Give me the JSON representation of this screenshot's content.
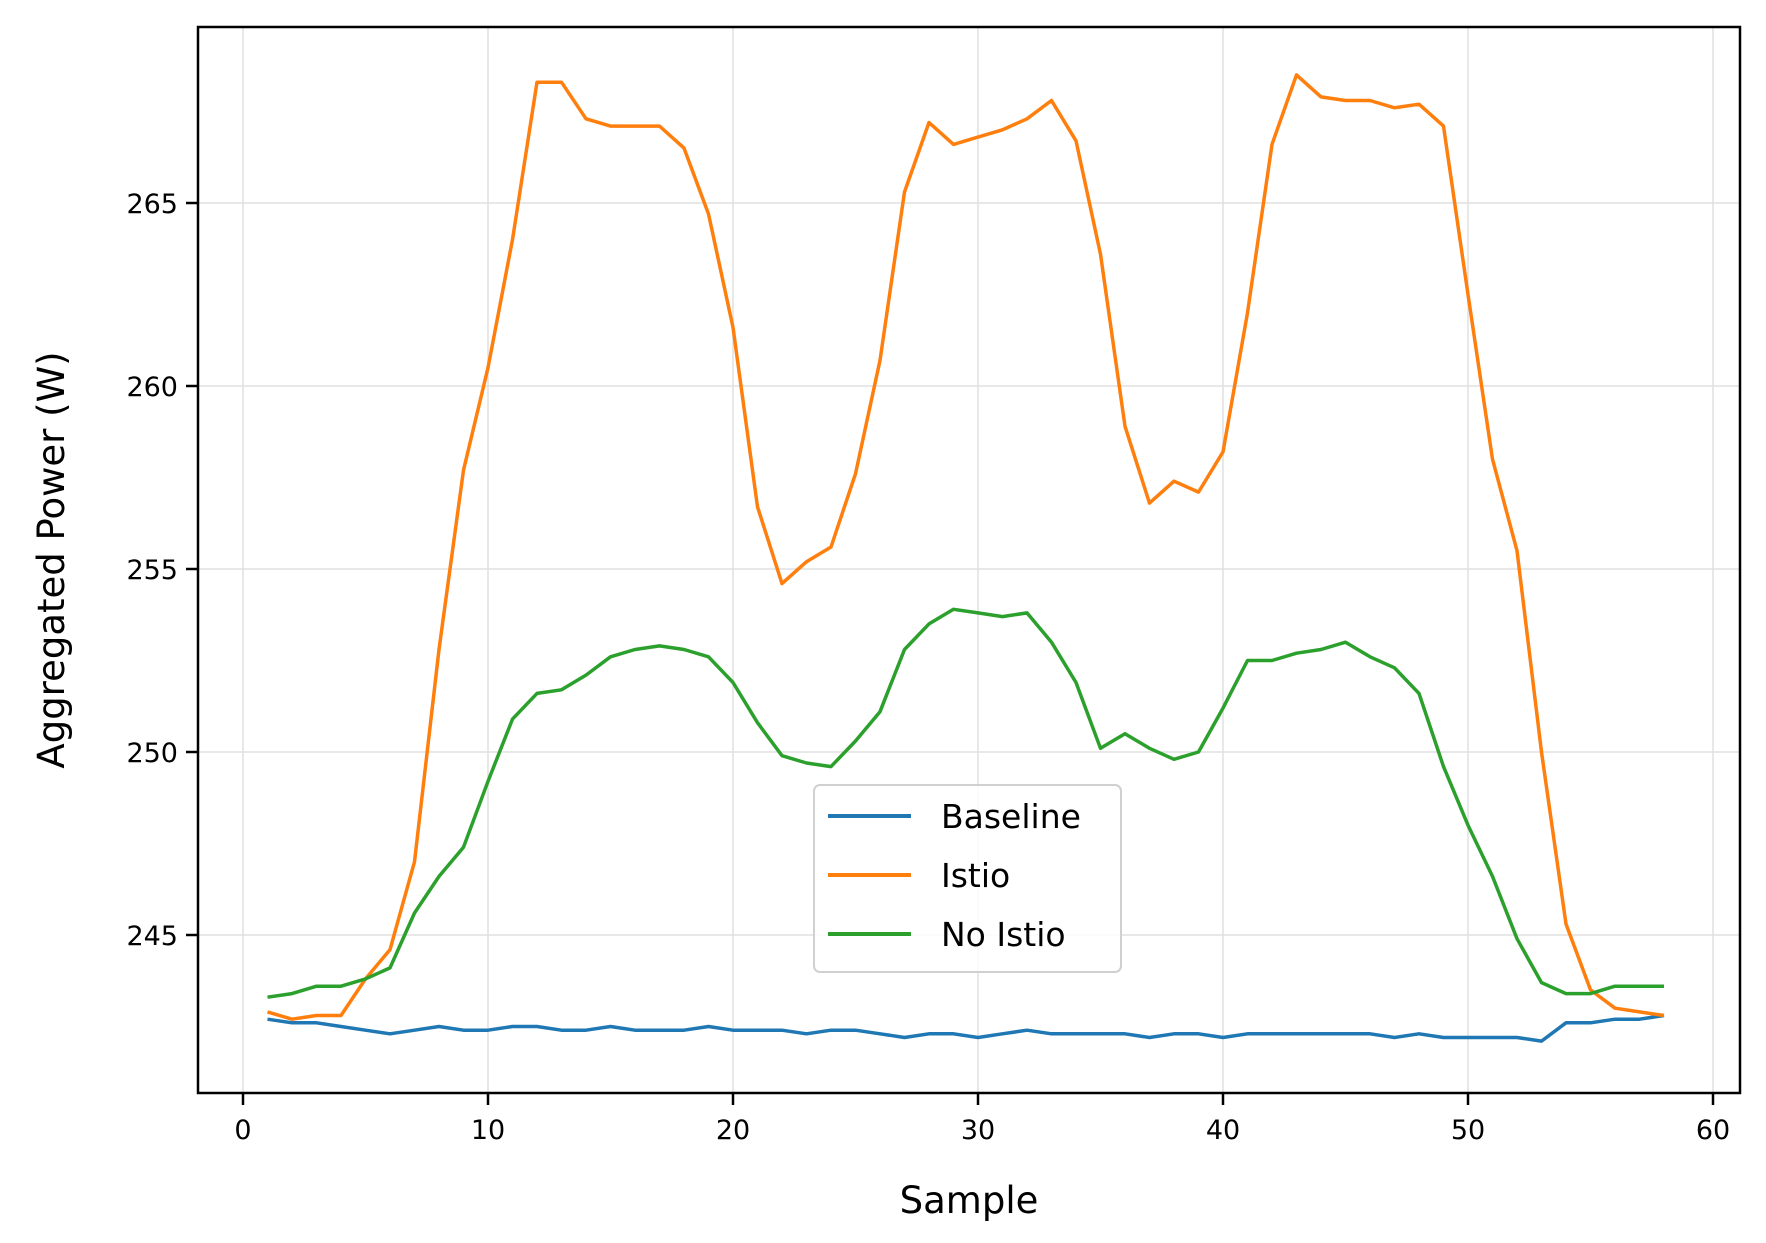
{
  "chart_data": {
    "type": "line",
    "title": "",
    "xlabel": "Sample",
    "ylabel": "Aggregated Power (W)",
    "xlim": [
      -1.9,
      61.0
    ],
    "ylim": [
      241.0,
      269.3
    ],
    "xticks": [
      0,
      10,
      20,
      30,
      40,
      50,
      60
    ],
    "yticks": [
      245,
      250,
      255,
      260,
      265
    ],
    "grid": true,
    "legend_position": "center-lower",
    "x": [
      1,
      2,
      3,
      4,
      5,
      6,
      7,
      8,
      9,
      10,
      11,
      12,
      13,
      14,
      15,
      16,
      17,
      18,
      19,
      20,
      21,
      22,
      23,
      24,
      25,
      26,
      27,
      28,
      29,
      30,
      31,
      32,
      33,
      34,
      35,
      36,
      37,
      38,
      39,
      40,
      41,
      42,
      43,
      44,
      45,
      46,
      47,
      48,
      49,
      50,
      51,
      52,
      53,
      54,
      55,
      56,
      57,
      58
    ],
    "series": [
      {
        "name": "Baseline",
        "color": "#1f77b4",
        "values": [
          242.7,
          242.6,
          242.6,
          242.5,
          242.4,
          242.3,
          242.4,
          242.5,
          242.4,
          242.4,
          242.5,
          242.5,
          242.4,
          242.4,
          242.5,
          242.4,
          242.4,
          242.4,
          242.5,
          242.4,
          242.4,
          242.4,
          242.3,
          242.4,
          242.4,
          242.3,
          242.2,
          242.3,
          242.3,
          242.2,
          242.3,
          242.4,
          242.3,
          242.3,
          242.3,
          242.3,
          242.2,
          242.3,
          242.3,
          242.2,
          242.3,
          242.3,
          242.3,
          242.3,
          242.3,
          242.3,
          242.2,
          242.3,
          242.2,
          242.2,
          242.2,
          242.2,
          242.1,
          242.6,
          242.6,
          242.7,
          242.7,
          242.8
        ]
      },
      {
        "name": "Istio",
        "color": "#ff7f0e",
        "values": [
          242.9,
          242.7,
          242.8,
          242.8,
          243.8,
          244.6,
          247.0,
          252.8,
          257.7,
          260.5,
          264.0,
          268.3,
          268.3,
          267.3,
          267.1,
          267.1,
          267.1,
          266.5,
          264.7,
          261.6,
          256.7,
          254.6,
          255.2,
          255.6,
          257.6,
          260.7,
          265.3,
          267.2,
          266.6,
          266.8,
          267.0,
          267.3,
          267.8,
          266.7,
          263.6,
          258.9,
          256.8,
          257.4,
          257.1,
          258.2,
          262.0,
          266.6,
          268.5,
          267.9,
          267.8,
          267.8,
          267.6,
          267.7,
          267.1,
          262.5,
          258.0,
          255.5,
          250.0,
          245.3,
          243.5,
          243.0,
          242.9,
          242.8
        ]
      },
      {
        "name": "No Istio",
        "color": "#2ca02c",
        "values": [
          243.3,
          243.4,
          243.6,
          243.6,
          243.8,
          244.1,
          245.6,
          246.6,
          247.4,
          249.2,
          250.9,
          251.6,
          251.7,
          252.1,
          252.6,
          252.8,
          252.9,
          252.8,
          252.6,
          251.9,
          250.8,
          249.9,
          249.7,
          249.6,
          250.3,
          251.1,
          252.8,
          253.5,
          253.9,
          253.8,
          253.7,
          253.8,
          253.0,
          251.9,
          250.1,
          250.5,
          250.1,
          249.8,
          250.0,
          251.2,
          252.5,
          252.5,
          252.7,
          252.8,
          253.0,
          252.6,
          252.3,
          251.6,
          249.6,
          248.0,
          246.6,
          244.9,
          243.7,
          243.4,
          243.4,
          243.6,
          243.6,
          243.6
        ]
      }
    ]
  },
  "axes": {
    "xlabel": "Sample",
    "ylabel": "Aggregated Power (W)",
    "xtick_labels": [
      "0",
      "10",
      "20",
      "30",
      "40",
      "50",
      "60"
    ],
    "ytick_labels": [
      "245",
      "250",
      "255",
      "260",
      "265"
    ]
  },
  "legend": {
    "items": [
      {
        "label": "Baseline",
        "color": "#1f77b4"
      },
      {
        "label": "Istio",
        "color": "#ff7f0e"
      },
      {
        "label": "No Istio",
        "color": "#2ca02c"
      }
    ]
  }
}
